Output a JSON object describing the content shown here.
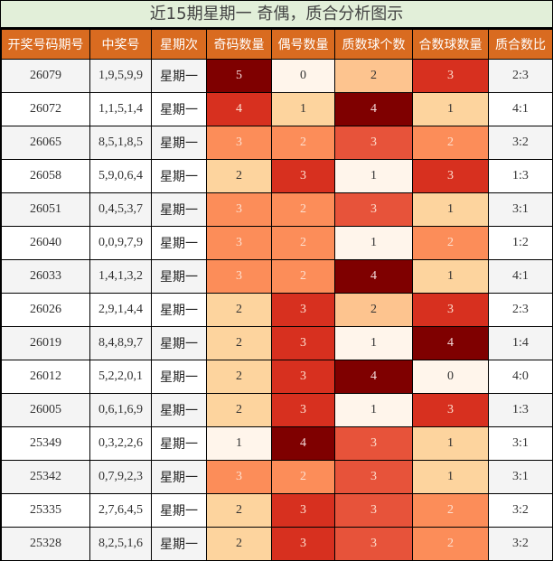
{
  "title": "近15期星期一 奇偶，质合分析图示",
  "headers": [
    "开奖号码期号",
    "中奖号",
    "星期次",
    "奇码数量",
    "偶号数量",
    "质数球个数",
    "合数球数量",
    "质合数比"
  ],
  "rows": [
    {
      "issue": "26079",
      "numbers": "1,9,5,9,9",
      "weekday": "星期一",
      "odd": "5",
      "even": "0",
      "prime": "2",
      "composite": "3",
      "ratio": "2:3",
      "colors": [
        "c6",
        "c0",
        "c2",
        "c5"
      ]
    },
    {
      "issue": "26072",
      "numbers": "1,1,5,1,4",
      "weekday": "星期一",
      "odd": "4",
      "even": "1",
      "prime": "4",
      "composite": "1",
      "ratio": "4:1",
      "colors": [
        "c5",
        "c1",
        "c6",
        "c1"
      ]
    },
    {
      "issue": "26065",
      "numbers": "8,5,1,8,5",
      "weekday": "星期一",
      "odd": "3",
      "even": "2",
      "prime": "3",
      "composite": "2",
      "ratio": "3:2",
      "colors": [
        "c3",
        "c3",
        "c4",
        "c3"
      ]
    },
    {
      "issue": "26058",
      "numbers": "5,9,0,6,4",
      "weekday": "星期一",
      "odd": "2",
      "even": "3",
      "prime": "1",
      "composite": "3",
      "ratio": "1:3",
      "colors": [
        "c1",
        "c5",
        "c0",
        "c5"
      ]
    },
    {
      "issue": "26051",
      "numbers": "0,4,5,3,7",
      "weekday": "星期一",
      "odd": "3",
      "even": "2",
      "prime": "3",
      "composite": "1",
      "ratio": "3:1",
      "colors": [
        "c3",
        "c3",
        "c4",
        "c1"
      ]
    },
    {
      "issue": "26040",
      "numbers": "0,0,9,7,9",
      "weekday": "星期一",
      "odd": "3",
      "even": "2",
      "prime": "1",
      "composite": "2",
      "ratio": "1:2",
      "colors": [
        "c3",
        "c3",
        "c0",
        "c3"
      ]
    },
    {
      "issue": "26033",
      "numbers": "1,4,1,3,2",
      "weekday": "星期一",
      "odd": "3",
      "even": "2",
      "prime": "4",
      "composite": "1",
      "ratio": "4:1",
      "colors": [
        "c3",
        "c3",
        "c6",
        "c1"
      ]
    },
    {
      "issue": "26026",
      "numbers": "2,9,1,4,4",
      "weekday": "星期一",
      "odd": "2",
      "even": "3",
      "prime": "2",
      "composite": "3",
      "ratio": "2:3",
      "colors": [
        "c1",
        "c5",
        "c2",
        "c5"
      ]
    },
    {
      "issue": "26019",
      "numbers": "8,4,8,9,7",
      "weekday": "星期一",
      "odd": "2",
      "even": "3",
      "prime": "1",
      "composite": "4",
      "ratio": "1:4",
      "colors": [
        "c1",
        "c5",
        "c0",
        "c6"
      ]
    },
    {
      "issue": "26012",
      "numbers": "5,2,2,0,1",
      "weekday": "星期一",
      "odd": "2",
      "even": "3",
      "prime": "4",
      "composite": "0",
      "ratio": "4:0",
      "colors": [
        "c1",
        "c5",
        "c6",
        "c0"
      ]
    },
    {
      "issue": "26005",
      "numbers": "0,6,1,6,9",
      "weekday": "星期一",
      "odd": "2",
      "even": "3",
      "prime": "1",
      "composite": "3",
      "ratio": "1:3",
      "colors": [
        "c1",
        "c5",
        "c0",
        "c5"
      ]
    },
    {
      "issue": "25349",
      "numbers": "0,3,2,2,6",
      "weekday": "星期一",
      "odd": "1",
      "even": "4",
      "prime": "3",
      "composite": "1",
      "ratio": "3:1",
      "colors": [
        "c0",
        "c6",
        "c4",
        "c1"
      ]
    },
    {
      "issue": "25342",
      "numbers": "0,7,9,2,3",
      "weekday": "星期一",
      "odd": "3",
      "even": "2",
      "prime": "3",
      "composite": "1",
      "ratio": "3:1",
      "colors": [
        "c3",
        "c3",
        "c4",
        "c1"
      ]
    },
    {
      "issue": "25335",
      "numbers": "2,7,6,4,5",
      "weekday": "星期一",
      "odd": "2",
      "even": "3",
      "prime": "3",
      "composite": "2",
      "ratio": "3:2",
      "colors": [
        "c1",
        "c5",
        "c4",
        "c3"
      ]
    },
    {
      "issue": "25328",
      "numbers": "8,2,5,1,6",
      "weekday": "星期一",
      "odd": "2",
      "even": "3",
      "prime": "3",
      "composite": "2",
      "ratio": "3:2",
      "colors": [
        "c1",
        "c5",
        "c4",
        "c3"
      ]
    }
  ],
  "colors": {
    "title_bg": "#e2efd9",
    "header_bg": "#d96b20",
    "scale": [
      "#fff5eb",
      "#fdd49e",
      "#fdc48f",
      "#fc8d59",
      "#e7533a",
      "#d7301f",
      "#7f0000"
    ]
  }
}
